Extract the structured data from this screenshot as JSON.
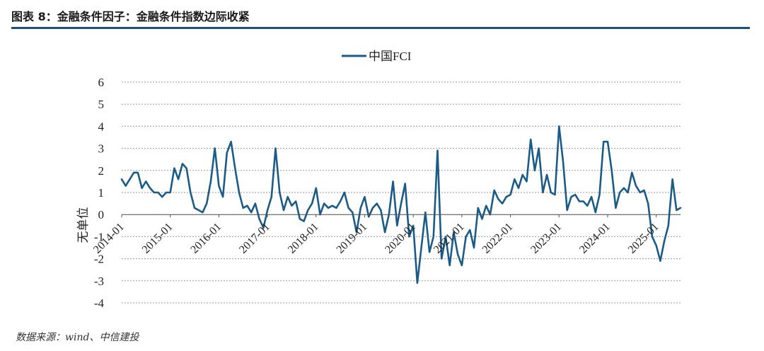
{
  "figure": {
    "title": "图表 8：金融条件因子：金融条件指数边际收紧",
    "source": "数据来源：wind、中信建投"
  },
  "colors": {
    "series": "#1b5b87",
    "title_rule": "#1f4e79",
    "grid": "#9a9a9a"
  },
  "chart_data": {
    "type": "line",
    "ylabel": "无单位",
    "ylim": [
      -4,
      6
    ],
    "yticks": [
      -4,
      -3,
      -2,
      -1,
      0,
      1,
      2,
      3,
      4,
      5,
      6
    ],
    "xlim": [
      "2014-01",
      "2025-07"
    ],
    "xticks": [
      "2014-01",
      "2015-01",
      "2016-01",
      "2017-01",
      "2018-01",
      "2019-01",
      "2020-01",
      "2021-01",
      "2022-01",
      "2023-01",
      "2024-01",
      "2025-01"
    ],
    "grid": "horizontal dashed",
    "legend": "top-center",
    "series": [
      {
        "name": "中国FCI",
        "points": [
          [
            "2014-01",
            1.6
          ],
          [
            "2014-02",
            1.3
          ],
          [
            "2014-03",
            1.6
          ],
          [
            "2014-04",
            1.9
          ],
          [
            "2014-05",
            1.9
          ],
          [
            "2014-06",
            1.2
          ],
          [
            "2014-07",
            1.5
          ],
          [
            "2014-08",
            1.2
          ],
          [
            "2014-09",
            1.0
          ],
          [
            "2014-10",
            1.0
          ],
          [
            "2014-11",
            0.8
          ],
          [
            "2014-12",
            1.0
          ],
          [
            "2015-01",
            1.0
          ],
          [
            "2015-02",
            2.1
          ],
          [
            "2015-03",
            1.6
          ],
          [
            "2015-04",
            2.3
          ],
          [
            "2015-05",
            2.1
          ],
          [
            "2015-06",
            1.0
          ],
          [
            "2015-07",
            0.3
          ],
          [
            "2015-08",
            0.2
          ],
          [
            "2015-09",
            0.1
          ],
          [
            "2015-10",
            0.5
          ],
          [
            "2015-11",
            1.5
          ],
          [
            "2015-12",
            3.0
          ],
          [
            "2016-01",
            1.3
          ],
          [
            "2016-02",
            0.8
          ],
          [
            "2016-03",
            2.8
          ],
          [
            "2016-04",
            3.3
          ],
          [
            "2016-05",
            2.1
          ],
          [
            "2016-06",
            1.0
          ],
          [
            "2016-07",
            0.3
          ],
          [
            "2016-08",
            0.4
          ],
          [
            "2016-09",
            0.1
          ],
          [
            "2016-10",
            0.5
          ],
          [
            "2016-11",
            -0.2
          ],
          [
            "2016-12",
            -0.6
          ],
          [
            "2017-01",
            0.2
          ],
          [
            "2017-02",
            0.8
          ],
          [
            "2017-03",
            3.0
          ],
          [
            "2017-04",
            1.0
          ],
          [
            "2017-05",
            0.2
          ],
          [
            "2017-06",
            0.8
          ],
          [
            "2017-07",
            0.4
          ],
          [
            "2017-08",
            0.6
          ],
          [
            "2017-09",
            -0.2
          ],
          [
            "2017-10",
            -0.3
          ],
          [
            "2017-11",
            0.2
          ],
          [
            "2017-12",
            0.5
          ],
          [
            "2018-01",
            1.2
          ],
          [
            "2018-02",
            0.0
          ],
          [
            "2018-03",
            0.5
          ],
          [
            "2018-04",
            0.3
          ],
          [
            "2018-05",
            0.4
          ],
          [
            "2018-06",
            0.3
          ],
          [
            "2018-07",
            0.6
          ],
          [
            "2018-08",
            1.0
          ],
          [
            "2018-09",
            0.3
          ],
          [
            "2018-10",
            0.1
          ],
          [
            "2018-11",
            -0.8
          ],
          [
            "2018-12",
            0.3
          ],
          [
            "2019-01",
            0.8
          ],
          [
            "2019-02",
            -0.1
          ],
          [
            "2019-03",
            0.3
          ],
          [
            "2019-04",
            0.5
          ],
          [
            "2019-05",
            0.2
          ],
          [
            "2019-06",
            -0.8
          ],
          [
            "2019-07",
            0.0
          ],
          [
            "2019-08",
            1.5
          ],
          [
            "2019-09",
            -0.5
          ],
          [
            "2019-10",
            0.5
          ],
          [
            "2019-11",
            1.4
          ],
          [
            "2019-12",
            -1.0
          ],
          [
            "2020-01",
            -0.5
          ],
          [
            "2020-02",
            -3.1
          ],
          [
            "2020-03",
            -1.5
          ],
          [
            "2020-04",
            0.1
          ],
          [
            "2020-05",
            -1.7
          ],
          [
            "2020-06",
            -1.0
          ],
          [
            "2020-07",
            2.9
          ],
          [
            "2020-08",
            -2.0
          ],
          [
            "2020-09",
            -1.0
          ],
          [
            "2020-10",
            -2.3
          ],
          [
            "2020-11",
            -0.8
          ],
          [
            "2020-12",
            -1.8
          ],
          [
            "2021-01",
            -2.3
          ],
          [
            "2021-02",
            -1.0
          ],
          [
            "2021-03",
            -0.7
          ],
          [
            "2021-04",
            -1.5
          ],
          [
            "2021-05",
            0.3
          ],
          [
            "2021-06",
            -0.2
          ],
          [
            "2021-07",
            0.4
          ],
          [
            "2021-08",
            0.0
          ],
          [
            "2021-09",
            1.1
          ],
          [
            "2021-10",
            0.7
          ],
          [
            "2021-11",
            0.5
          ],
          [
            "2021-12",
            0.8
          ],
          [
            "2022-01",
            0.9
          ],
          [
            "2022-02",
            1.6
          ],
          [
            "2022-03",
            1.2
          ],
          [
            "2022-04",
            1.8
          ],
          [
            "2022-05",
            1.5
          ],
          [
            "2022-06",
            3.4
          ],
          [
            "2022-07",
            2.0
          ],
          [
            "2022-08",
            3.0
          ],
          [
            "2022-09",
            1.0
          ],
          [
            "2022-10",
            1.8
          ],
          [
            "2022-11",
            1.0
          ],
          [
            "2022-12",
            0.9
          ],
          [
            "2023-01",
            4.0
          ],
          [
            "2023-02",
            2.4
          ],
          [
            "2023-03",
            0.2
          ],
          [
            "2023-04",
            0.8
          ],
          [
            "2023-05",
            0.9
          ],
          [
            "2023-06",
            0.6
          ],
          [
            "2023-07",
            0.6
          ],
          [
            "2023-08",
            0.4
          ],
          [
            "2023-09",
            0.8
          ],
          [
            "2023-10",
            0.1
          ],
          [
            "2023-11",
            0.9
          ],
          [
            "2023-12",
            3.3
          ],
          [
            "2024-01",
            3.3
          ],
          [
            "2024-02",
            2.0
          ],
          [
            "2024-03",
            0.3
          ],
          [
            "2024-04",
            1.0
          ],
          [
            "2024-05",
            1.2
          ],
          [
            "2024-06",
            1.0
          ],
          [
            "2024-07",
            1.9
          ],
          [
            "2024-08",
            1.3
          ],
          [
            "2024-09",
            1.0
          ],
          [
            "2024-10",
            1.1
          ],
          [
            "2024-11",
            0.5
          ],
          [
            "2024-12",
            -1.0
          ],
          [
            "2025-01",
            -1.4
          ],
          [
            "2025-02",
            -2.1
          ],
          [
            "2025-03",
            -1.2
          ],
          [
            "2025-04",
            -0.5
          ],
          [
            "2025-05",
            1.6
          ],
          [
            "2025-06",
            0.2
          ],
          [
            "2025-07",
            0.3
          ]
        ]
      }
    ]
  }
}
